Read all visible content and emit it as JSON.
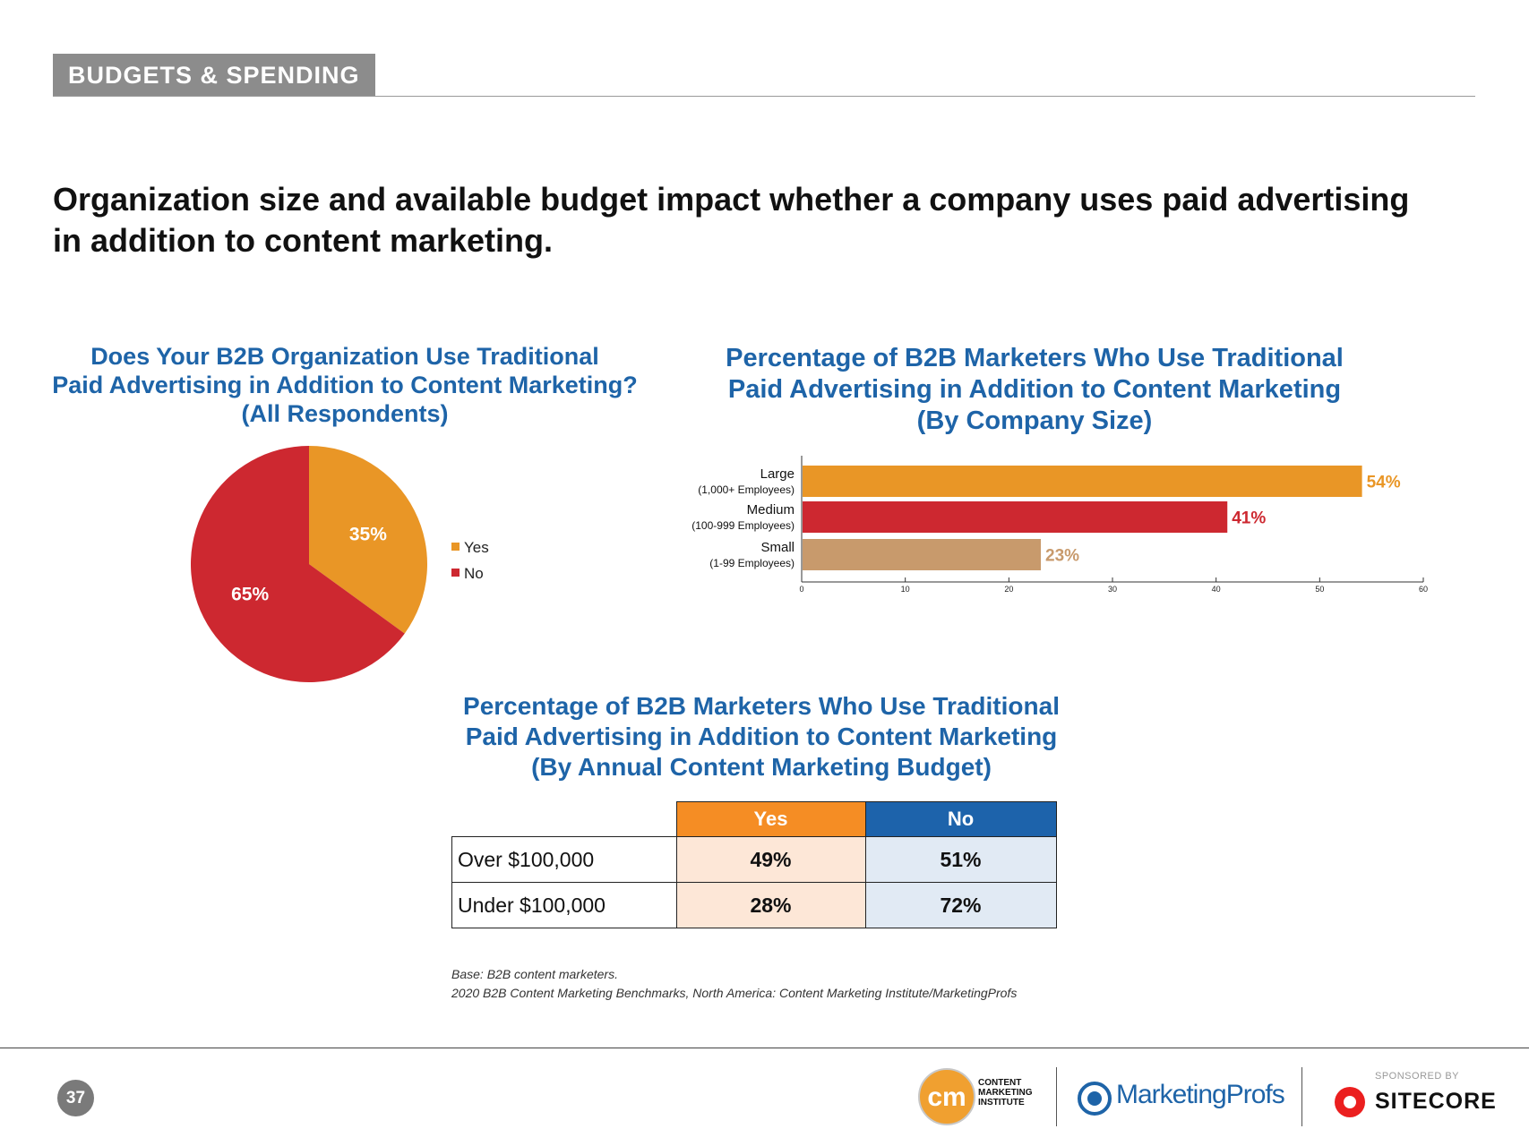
{
  "section_tag": "BUDGETS & SPENDING",
  "headline": [
    "Organization size and available budget impact whether a company uses paid advertising",
    "in addition to content marketing."
  ],
  "colors": {
    "orange": "#e99626",
    "red": "#cd2830",
    "tan": "#c89a6c",
    "blue": "#1e64a8",
    "table_yes_header": "#f58d24",
    "table_no_header": "#1d63ab",
    "table_yes_cell": "#fde7d7",
    "table_no_cell": "#e1eaf4"
  },
  "chart_data": [
    {
      "type": "pie",
      "title": [
        "Does Your B2B Organization Use Traditional",
        "Paid Advertising in Addition to Content Marketing?",
        "(All Respondents)"
      ],
      "labels": [
        "Yes",
        "No"
      ],
      "values": [
        35,
        65
      ],
      "value_labels": [
        "35%",
        "65%"
      ],
      "legend": {
        "placement": "right",
        "entries": [
          "Yes",
          "No"
        ]
      }
    },
    {
      "type": "bar",
      "orientation": "horizontal",
      "title": [
        "Percentage of B2B Marketers Who Use Traditional",
        "Paid Advertising in Addition to Content Marketing",
        "(By Company Size)"
      ],
      "categories": [
        {
          "name": "Large",
          "sub": "(1,000+ Employees)"
        },
        {
          "name": "Medium",
          "sub": "(100-999 Employees)"
        },
        {
          "name": "Small",
          "sub": "(1-99 Employees)"
        }
      ],
      "values": [
        54,
        41,
        23
      ],
      "value_labels": [
        "54%",
        "41%",
        "23%"
      ],
      "xlim": [
        0,
        60
      ],
      "xticks": [
        0,
        10,
        20,
        30,
        40,
        50,
        60
      ],
      "xtick_labels": [
        "0",
        "10",
        "20",
        "30",
        "40",
        "50",
        "60"
      ]
    },
    {
      "type": "table",
      "title": [
        "Percentage of B2B Marketers Who Use Traditional",
        "Paid Advertising in Addition to Content Marketing",
        "(By Annual Content Marketing Budget)"
      ],
      "columns": [
        "Yes",
        "No"
      ],
      "rows": [
        {
          "label": "Over $100,000",
          "values": [
            "49%",
            "51%"
          ]
        },
        {
          "label": "Under $100,000",
          "values": [
            "28%",
            "72%"
          ]
        }
      ]
    }
  ],
  "source": [
    "Base: B2B content marketers.",
    "2020 B2B Content Marketing Benchmarks, North America: Content Marketing Institute/MarketingProfs"
  ],
  "footer": {
    "page_number": "37",
    "cmi_mark": "cm",
    "cmi_lines": [
      "CONTENT",
      "MARKETING",
      "INSTITUTE"
    ],
    "marketingprofs": "MarketingProfs",
    "sponsored_by": "SPONSORED BY",
    "sitecore": "SITECORE"
  }
}
